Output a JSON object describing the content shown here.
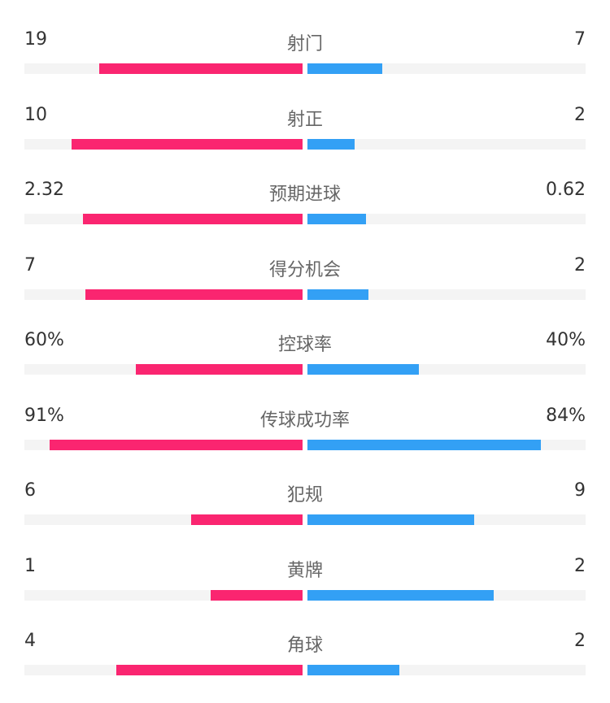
{
  "colors": {
    "home": "#fa2570",
    "away": "#33a0f5",
    "track": "#f4f4f4"
  },
  "stats": [
    {
      "label": "射门",
      "home": "19",
      "away": "7",
      "home_fill": 0.73,
      "away_fill": 0.27
    },
    {
      "label": "射正",
      "home": "10",
      "away": "2",
      "home_fill": 0.83,
      "away_fill": 0.17
    },
    {
      "label": "预期进球",
      "home": "2.32",
      "away": "0.62",
      "home_fill": 0.79,
      "away_fill": 0.21
    },
    {
      "label": "得分机会",
      "home": "7",
      "away": "2",
      "home_fill": 0.78,
      "away_fill": 0.22
    },
    {
      "label": "控球率",
      "home": "60%",
      "away": "40%",
      "home_fill": 0.6,
      "away_fill": 0.4
    },
    {
      "label": "传球成功率",
      "home": "91%",
      "away": "84%",
      "home_fill": 0.91,
      "away_fill": 0.84
    },
    {
      "label": "犯规",
      "home": "6",
      "away": "9",
      "home_fill": 0.4,
      "away_fill": 0.6
    },
    {
      "label": "黄牌",
      "home": "1",
      "away": "2",
      "home_fill": 0.33,
      "away_fill": 0.67
    },
    {
      "label": "角球",
      "home": "4",
      "away": "2",
      "home_fill": 0.67,
      "away_fill": 0.33
    }
  ]
}
